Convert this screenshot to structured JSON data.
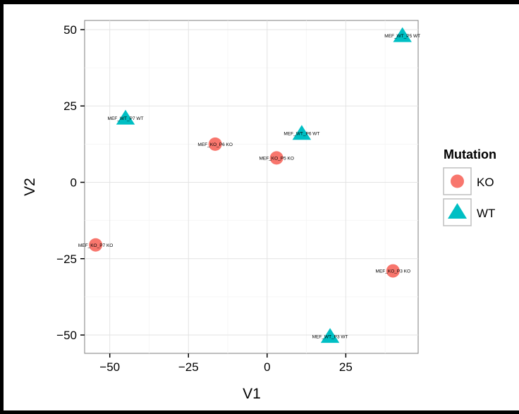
{
  "chart_data": {
    "type": "scatter",
    "xlabel": "V1",
    "ylabel": "V2",
    "xlim": [
      -58,
      48
    ],
    "ylim": [
      -56,
      53
    ],
    "x_ticks": [
      -50,
      -25,
      0,
      25
    ],
    "x_tick_labels": [
      "−50",
      "−25",
      "0",
      "25"
    ],
    "y_ticks": [
      -50,
      -25,
      0,
      25,
      50
    ],
    "y_tick_labels": [
      "−50",
      "−25",
      "0",
      "25",
      "50"
    ],
    "grid": true,
    "legend": {
      "title": "Mutation",
      "placement": "right",
      "entries": [
        {
          "label": "KO",
          "shape": "circle",
          "color": "#F8766D"
        },
        {
          "label": "WT",
          "shape": "triangle",
          "color": "#00BFC4"
        }
      ]
    },
    "series": [
      {
        "name": "KO",
        "shape": "circle",
        "color": "#F8766D",
        "points": [
          {
            "x": -16.5,
            "y": 12.5,
            "label": "MEF_KO_P6 KO"
          },
          {
            "x": 3,
            "y": 8,
            "label": "MEF_KO_P5 KO"
          },
          {
            "x": -54.5,
            "y": -20.5,
            "label": "MEF_KO_P7 KO"
          },
          {
            "x": 40,
            "y": -29,
            "label": "MEF_KO_P3 KO"
          }
        ]
      },
      {
        "name": "WT",
        "shape": "triangle",
        "color": "#00BFC4",
        "points": [
          {
            "x": 43,
            "y": 48,
            "label": "MEF_WT_P5 WT"
          },
          {
            "x": -45,
            "y": 21,
            "label": "MEF_WT_P7 WT"
          },
          {
            "x": 11,
            "y": 16,
            "label": "MEF_WT_P6 WT"
          },
          {
            "x": 20,
            "y": -50.5,
            "label": "MEF_WT_P3 WT"
          }
        ]
      }
    ]
  }
}
